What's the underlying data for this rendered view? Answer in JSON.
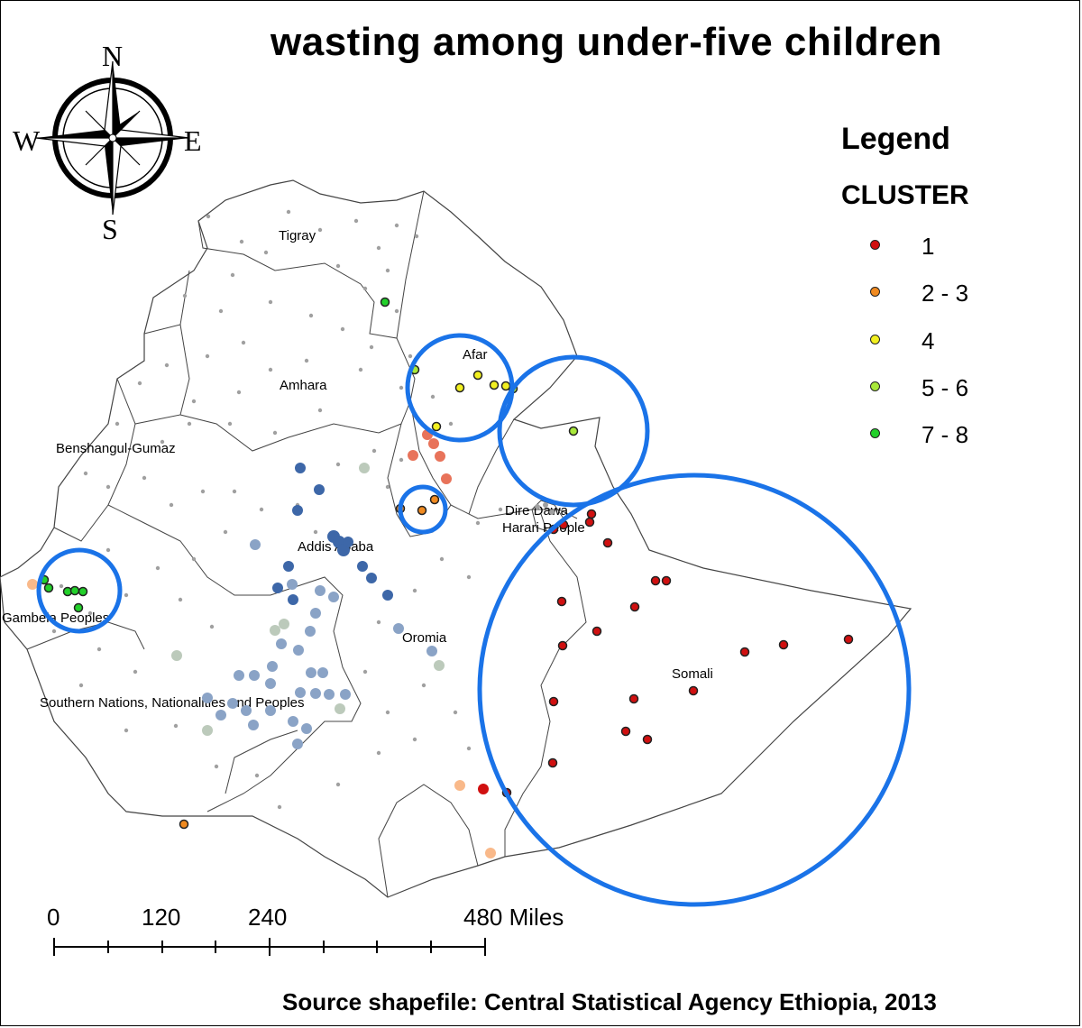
{
  "title": "wasting among under-five children",
  "legend": {
    "title": "Legend",
    "field": "CLUSTER",
    "items": [
      {
        "label": "1",
        "color": "#d01010"
      },
      {
        "label": "2 - 3",
        "color": "#f08a20"
      },
      {
        "label": "4",
        "color": "#f2f020"
      },
      {
        "label": "5 - 6",
        "color": "#a8e83a"
      },
      {
        "label": "7 - 8",
        "color": "#22d02a"
      }
    ]
  },
  "compass": {
    "north": "N",
    "south": "S",
    "east": "E",
    "west": "W"
  },
  "regions": [
    "Tigray",
    "Afar",
    "Amhara",
    "Benshangul-Gumaz",
    "Dire Dawa",
    "Harari People",
    "Addis Ababa",
    "Gambela Peoples",
    "Oromia",
    "Somali",
    "Southern Nations, Nationalities and Peoples"
  ],
  "scale_bar": {
    "labels": [
      "0",
      "120",
      "240",
      "480 Miles"
    ]
  },
  "source": "Source shapefile: Central Statistical Agency Ethiopia, 2013",
  "colors": {
    "cluster_ring": "#1a73e8",
    "hotspot_high": "#e8735a",
    "hotspot_light": "#f9b98a",
    "coldspot_dark": "#3d67a8",
    "coldspot_mid": "#8aa3c6",
    "coldspot_light": "#bccabb",
    "not_significant": "#a0a0a0"
  }
}
